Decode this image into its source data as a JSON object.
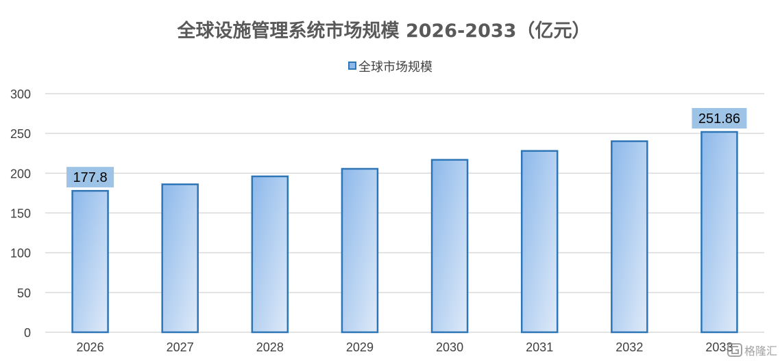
{
  "chart_data": {
    "type": "bar",
    "title": "全球设施管理系统市场规模 2026-2033（亿元）",
    "legend_position": "top-center",
    "grid": true,
    "categories": [
      "2026",
      "2027",
      "2028",
      "2029",
      "2030",
      "2031",
      "2032",
      "2033"
    ],
    "series": [
      {
        "name": "全球市场规模",
        "values": [
          177.8,
          186.0,
          196.0,
          205.5,
          216.8,
          228.0,
          240.2,
          251.86
        ]
      }
    ],
    "data_labels": [
      {
        "category": "2026",
        "text": "177.8"
      },
      {
        "category": "2033",
        "text": "251.86"
      }
    ],
    "ylim": [
      0,
      300
    ],
    "yticks": [
      "0",
      "50",
      "100",
      "150",
      "200",
      "250",
      "300"
    ],
    "xlabel": "",
    "ylabel": "",
    "colors": {
      "bar_border": "#2e75b6",
      "bar_gradient_start": "#8cb8ea",
      "bar_gradient_end": "#dfeaf8",
      "label_background": "#9dc3e6",
      "gridline": "#d9d9d9",
      "axis_text": "#404040",
      "title": "#595959"
    }
  },
  "watermark": {
    "icon": "gelonghui-logo-icon",
    "text": "格隆汇"
  }
}
